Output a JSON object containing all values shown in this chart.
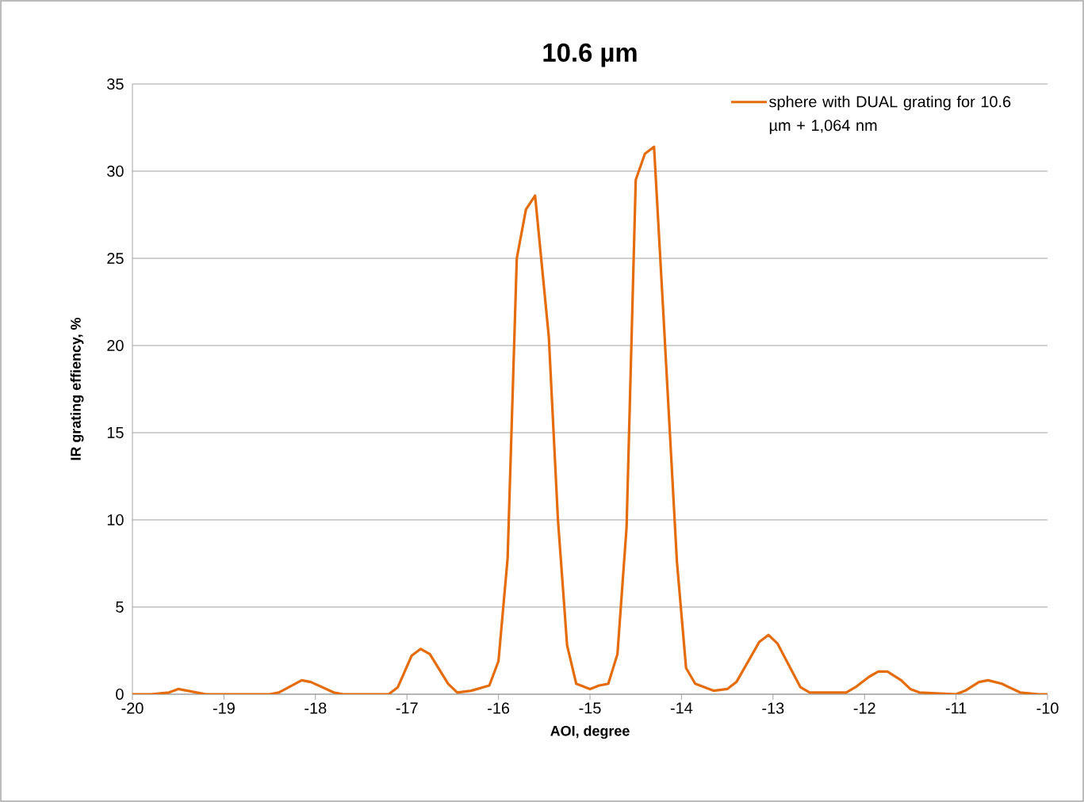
{
  "chart_data": {
    "type": "line",
    "title": "10.6 µm",
    "xlabel": "AOI, degree",
    "ylabel": "IR grating effiency, %",
    "xlim": [
      -20,
      -10
    ],
    "xticks": [
      -20,
      -19,
      -18,
      -17,
      -16,
      -15,
      -14,
      -13,
      -12,
      -11,
      -10
    ],
    "ylim": [
      0,
      35
    ],
    "yticks": [
      0,
      5,
      10,
      15,
      20,
      25,
      30,
      35
    ],
    "grid": "y",
    "legend": "top right",
    "marker": "none",
    "line_style": "solid",
    "series": [
      {
        "name": "sphere with DUAL grating for 10.6 µm + 1,064 nm",
        "color": "#e46c0a",
        "x": [
          -20,
          -19.8,
          -19.6,
          -19.5,
          -19.2,
          -18.5,
          -18.4,
          -18.15,
          -18.05,
          -17.8,
          -17.7,
          -17.2,
          -17.1,
          -16.95,
          -16.85,
          -16.75,
          -16.55,
          -16.45,
          -16.3,
          -16.1,
          -16.0,
          -15.9,
          -15.8,
          -15.7,
          -15.6,
          -15.45,
          -15.35,
          -15.25,
          -15.15,
          -15.0,
          -14.9,
          -14.8,
          -14.7,
          -14.6,
          -14.5,
          -14.4,
          -14.3,
          -14.2,
          -14.05,
          -13.95,
          -13.85,
          -13.65,
          -13.5,
          -13.4,
          -13.15,
          -13.05,
          -12.95,
          -12.7,
          -12.6,
          -12.2,
          -12.1,
          -11.95,
          -11.85,
          -11.75,
          -11.6,
          -11.5,
          -11.4,
          -11.0,
          -10.9,
          -10.75,
          -10.65,
          -10.5,
          -10.3,
          -10.1,
          -10
        ],
        "values": [
          0,
          0,
          0.1,
          0.3,
          0,
          0,
          0.1,
          0.8,
          0.7,
          0.1,
          0,
          0,
          0.4,
          2.2,
          2.6,
          2.3,
          0.6,
          0.1,
          0.2,
          0.5,
          1.9,
          7.8,
          25,
          27.8,
          28.6,
          20.5,
          10,
          2.8,
          0.6,
          0.3,
          0.5,
          0.6,
          2.3,
          9.6,
          29.5,
          31.0,
          31.4,
          22,
          7.6,
          1.5,
          0.6,
          0.2,
          0.3,
          0.7,
          3.0,
          3.4,
          2.9,
          0.4,
          0.1,
          0.1,
          0.4,
          1.0,
          1.3,
          1.3,
          0.8,
          0.3,
          0.1,
          0,
          0.2,
          0.7,
          0.8,
          0.6,
          0.1,
          0,
          0
        ]
      }
    ]
  }
}
